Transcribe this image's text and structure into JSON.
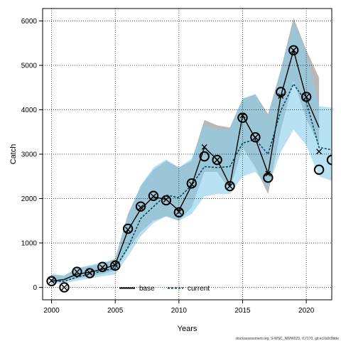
{
  "chart_data": {
    "type": "line",
    "title": "",
    "xlabel": "Years",
    "ylabel": "Catch",
    "xlim": [
      1999.3,
      2022
    ],
    "ylim": [
      -280,
      6280
    ],
    "x_ticks": [
      2000,
      2005,
      2010,
      2015,
      2020
    ],
    "y_ticks": [
      0,
      1000,
      2000,
      3000,
      4000,
      5000,
      6000
    ],
    "grid": true,
    "legend_position": "bottom-center",
    "legend": [
      {
        "label": "base",
        "color": "#000000",
        "style": "solid"
      },
      {
        "label": "current",
        "color": "#00485e",
        "style": "dashed"
      }
    ],
    "footer": "stockassessment.org, S-WSC_NWW023, r17170, git:ec2a0c8dde",
    "observed": {
      "x": [
        2000,
        2001,
        2002,
        2003,
        2004,
        2005,
        2006,
        2007,
        2008,
        2009,
        2010,
        2011,
        2012,
        2013,
        2014,
        2015,
        2016,
        2017,
        2018,
        2019,
        2020,
        2021,
        2022
      ],
      "y": [
        140,
        0,
        350,
        320,
        460,
        490,
        1320,
        1820,
        2060,
        1960,
        1690,
        2340,
        2950,
        2870,
        2280,
        3820,
        3380,
        2470,
        4400,
        5340,
        4290,
        2650,
        2870
      ]
    },
    "series": [
      {
        "name": "base",
        "color": "#000000",
        "band_color": "#888888",
        "x": [
          2000,
          2001,
          2002,
          2003,
          2004,
          2005,
          2006,
          2007,
          2008,
          2009,
          2010,
          2011,
          2012,
          2013,
          2014,
          2015,
          2016,
          2017,
          2018,
          2019,
          2020,
          2021
        ],
        "y": [
          140,
          180,
          300,
          340,
          410,
          510,
          1290,
          1760,
          2040,
          1980,
          1730,
          2300,
          3150,
          2880,
          2300,
          3870,
          3350,
          2560,
          4310,
          5340,
          4270,
          3600
        ],
        "lower": [
          100,
          130,
          200,
          250,
          300,
          380,
          850,
          1250,
          1500,
          1600,
          1500,
          1800,
          2600,
          2600,
          2200,
          3150,
          2700,
          2100,
          3550,
          4650,
          3800,
          3200
        ],
        "upper": [
          290,
          260,
          430,
          480,
          520,
          650,
          1650,
          2280,
          2650,
          2850,
          2700,
          2850,
          3770,
          3650,
          3600,
          4250,
          4350,
          3900,
          4900,
          6070,
          5350,
          4720
        ]
      },
      {
        "name": "current",
        "color": "#00485e",
        "band_color": "#87ceeb",
        "x": [
          2000,
          2001,
          2002,
          2003,
          2004,
          2005,
          2006,
          2007,
          2008,
          2009,
          2010,
          2011,
          2012,
          2013,
          2014,
          2015,
          2016,
          2017,
          2018,
          2019,
          2020,
          2021,
          2022
        ],
        "y": [
          130,
          140,
          230,
          300,
          370,
          430,
          900,
          1550,
          1820,
          2080,
          2020,
          2300,
          2720,
          2700,
          2720,
          3250,
          3330,
          3000,
          3980,
          4580,
          4180,
          3150,
          3100
        ],
        "lower": [
          80,
          90,
          150,
          200,
          250,
          290,
          700,
          1150,
          1450,
          1600,
          1500,
          1650,
          2050,
          2100,
          2100,
          2500,
          2600,
          2250,
          3050,
          3550,
          3200,
          2500,
          2400
        ],
        "upper": [
          300,
          270,
          430,
          500,
          570,
          620,
          1600,
          2300,
          2700,
          2880,
          2700,
          2900,
          3650,
          3550,
          3550,
          4250,
          4350,
          3850,
          4850,
          5950,
          5300,
          4080,
          4050
        ]
      }
    ],
    "estimates_x": {
      "x": [
        2000,
        2001,
        2002,
        2003,
        2004,
        2005,
        2006,
        2007,
        2008,
        2009,
        2010,
        2011,
        2012,
        2013,
        2014,
        2015,
        2016,
        2017,
        2018,
        2019,
        2020,
        2021
      ],
      "y": [
        150,
        0,
        350,
        330,
        450,
        500,
        1300,
        1800,
        2050,
        1980,
        1700,
        2320,
        3160,
        2870,
        2280,
        3870,
        3380,
        2560,
        4310,
        5340,
        4290,
        3060
      ]
    }
  }
}
